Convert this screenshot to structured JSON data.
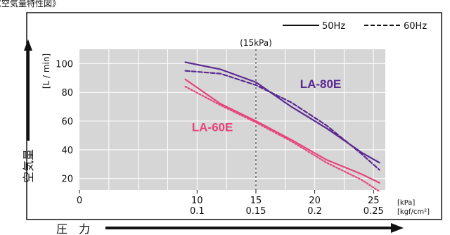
{
  "header": {
    "title": "《空気量特性図》"
  },
  "chart_data": {
    "type": "line",
    "xlabel": "圧　力",
    "ylabel": "空気量",
    "y_unit": "[L / min]",
    "x_unit_primary": "[kPa]",
    "x_unit_secondary": "[kgf/cm²]",
    "xlim": [
      0,
      26
    ],
    "ylim": [
      12,
      110
    ],
    "x_ticks": [
      {
        "value": 0,
        "label": "0",
        "sub": ""
      },
      {
        "value": 10,
        "label": "10",
        "sub": "0.1"
      },
      {
        "value": 15,
        "label": "15",
        "sub": "0.15"
      },
      {
        "value": 20,
        "label": "20",
        "sub": "0.2"
      },
      {
        "value": 25,
        "label": "25",
        "sub": "0.25"
      }
    ],
    "y_ticks": [
      {
        "value": 20,
        "label": "20"
      },
      {
        "value": 40,
        "label": "40"
      },
      {
        "value": 60,
        "label": "60"
      },
      {
        "value": 80,
        "label": "80"
      },
      {
        "value": 100,
        "label": "100"
      }
    ],
    "reference_line": {
      "x": 15,
      "label": "(15kPa)"
    },
    "legend": [
      {
        "label": "50Hz",
        "style": "solid"
      },
      {
        "label": "60Hz",
        "style": "dashed"
      }
    ],
    "series": [
      {
        "name": "LA-80E",
        "freq": "50Hz",
        "style": "solid",
        "color": "#5b2a91",
        "x": [
          9,
          12,
          15,
          18,
          21,
          24,
          25.5
        ],
        "y": [
          101,
          96,
          87,
          70,
          55,
          38,
          31
        ]
      },
      {
        "name": "LA-80E",
        "freq": "60Hz",
        "style": "dashed",
        "color": "#5b2a91",
        "x": [
          9,
          12,
          15,
          18,
          21,
          24,
          25.5
        ],
        "y": [
          95,
          93,
          85,
          73,
          57,
          37,
          26
        ]
      },
      {
        "name": "LA-60E",
        "freq": "50Hz",
        "style": "solid",
        "color": "#e6457b",
        "x": [
          9,
          12,
          15,
          18,
          21,
          24,
          25.5
        ],
        "y": [
          89,
          72,
          60,
          47,
          33,
          23,
          17
        ]
      },
      {
        "name": "LA-60E",
        "freq": "60Hz",
        "style": "dotted",
        "color": "#e6457b",
        "x": [
          9,
          12,
          15,
          18,
          21,
          24,
          25.5
        ],
        "y": [
          84,
          71,
          59,
          46,
          31,
          19,
          11
        ]
      }
    ],
    "series_labels": [
      {
        "text": "LA-80E",
        "color": "#5b2a91",
        "at_x": 20.5,
        "at_y": 83
      },
      {
        "text": "LA-60E",
        "color": "#e6457b",
        "at_x": 11.3,
        "at_y": 53
      }
    ],
    "grid": true
  }
}
